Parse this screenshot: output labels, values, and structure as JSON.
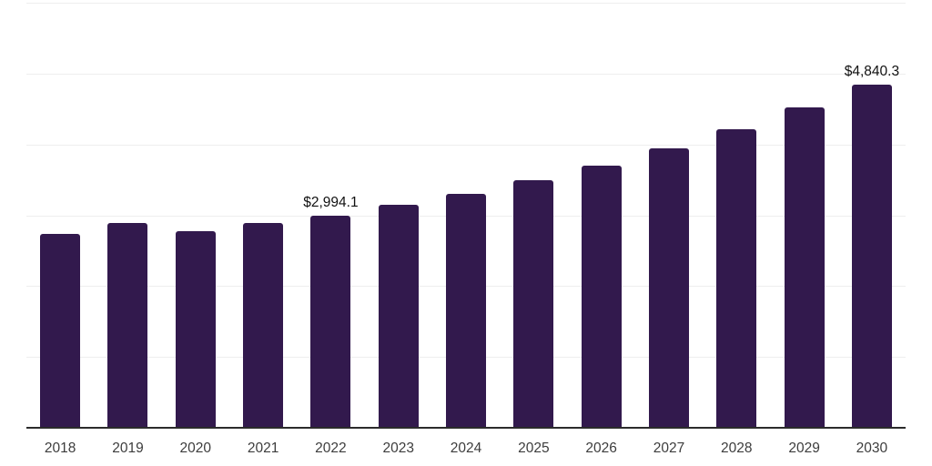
{
  "chart_data": {
    "type": "bar",
    "title": "",
    "xlabel": "",
    "ylabel": "",
    "categories": [
      "2018",
      "2019",
      "2020",
      "2021",
      "2022",
      "2023",
      "2024",
      "2025",
      "2026",
      "2027",
      "2028",
      "2029",
      "2030"
    ],
    "values": [
      2735.0,
      2885.0,
      2775.0,
      2895.0,
      2994.1,
      3145.0,
      3305.0,
      3490.0,
      3700.0,
      3950.0,
      4215.0,
      4520.0,
      4840.3
    ],
    "labeled_points": [
      {
        "category": "2022",
        "label": "$2,994.1"
      },
      {
        "category": "2030",
        "label": "$4,840.3"
      }
    ],
    "ylim": [
      0,
      6000
    ],
    "gridline_interval": 1000,
    "grid_visible": true,
    "legend": "none",
    "colors": {
      "bar": "#32194d",
      "gridline": "#eeeeee",
      "axis_line": "#2b2b2b",
      "tick_label": "#3d3d3d",
      "value_label": "#111111",
      "background": "#ffffff"
    }
  }
}
